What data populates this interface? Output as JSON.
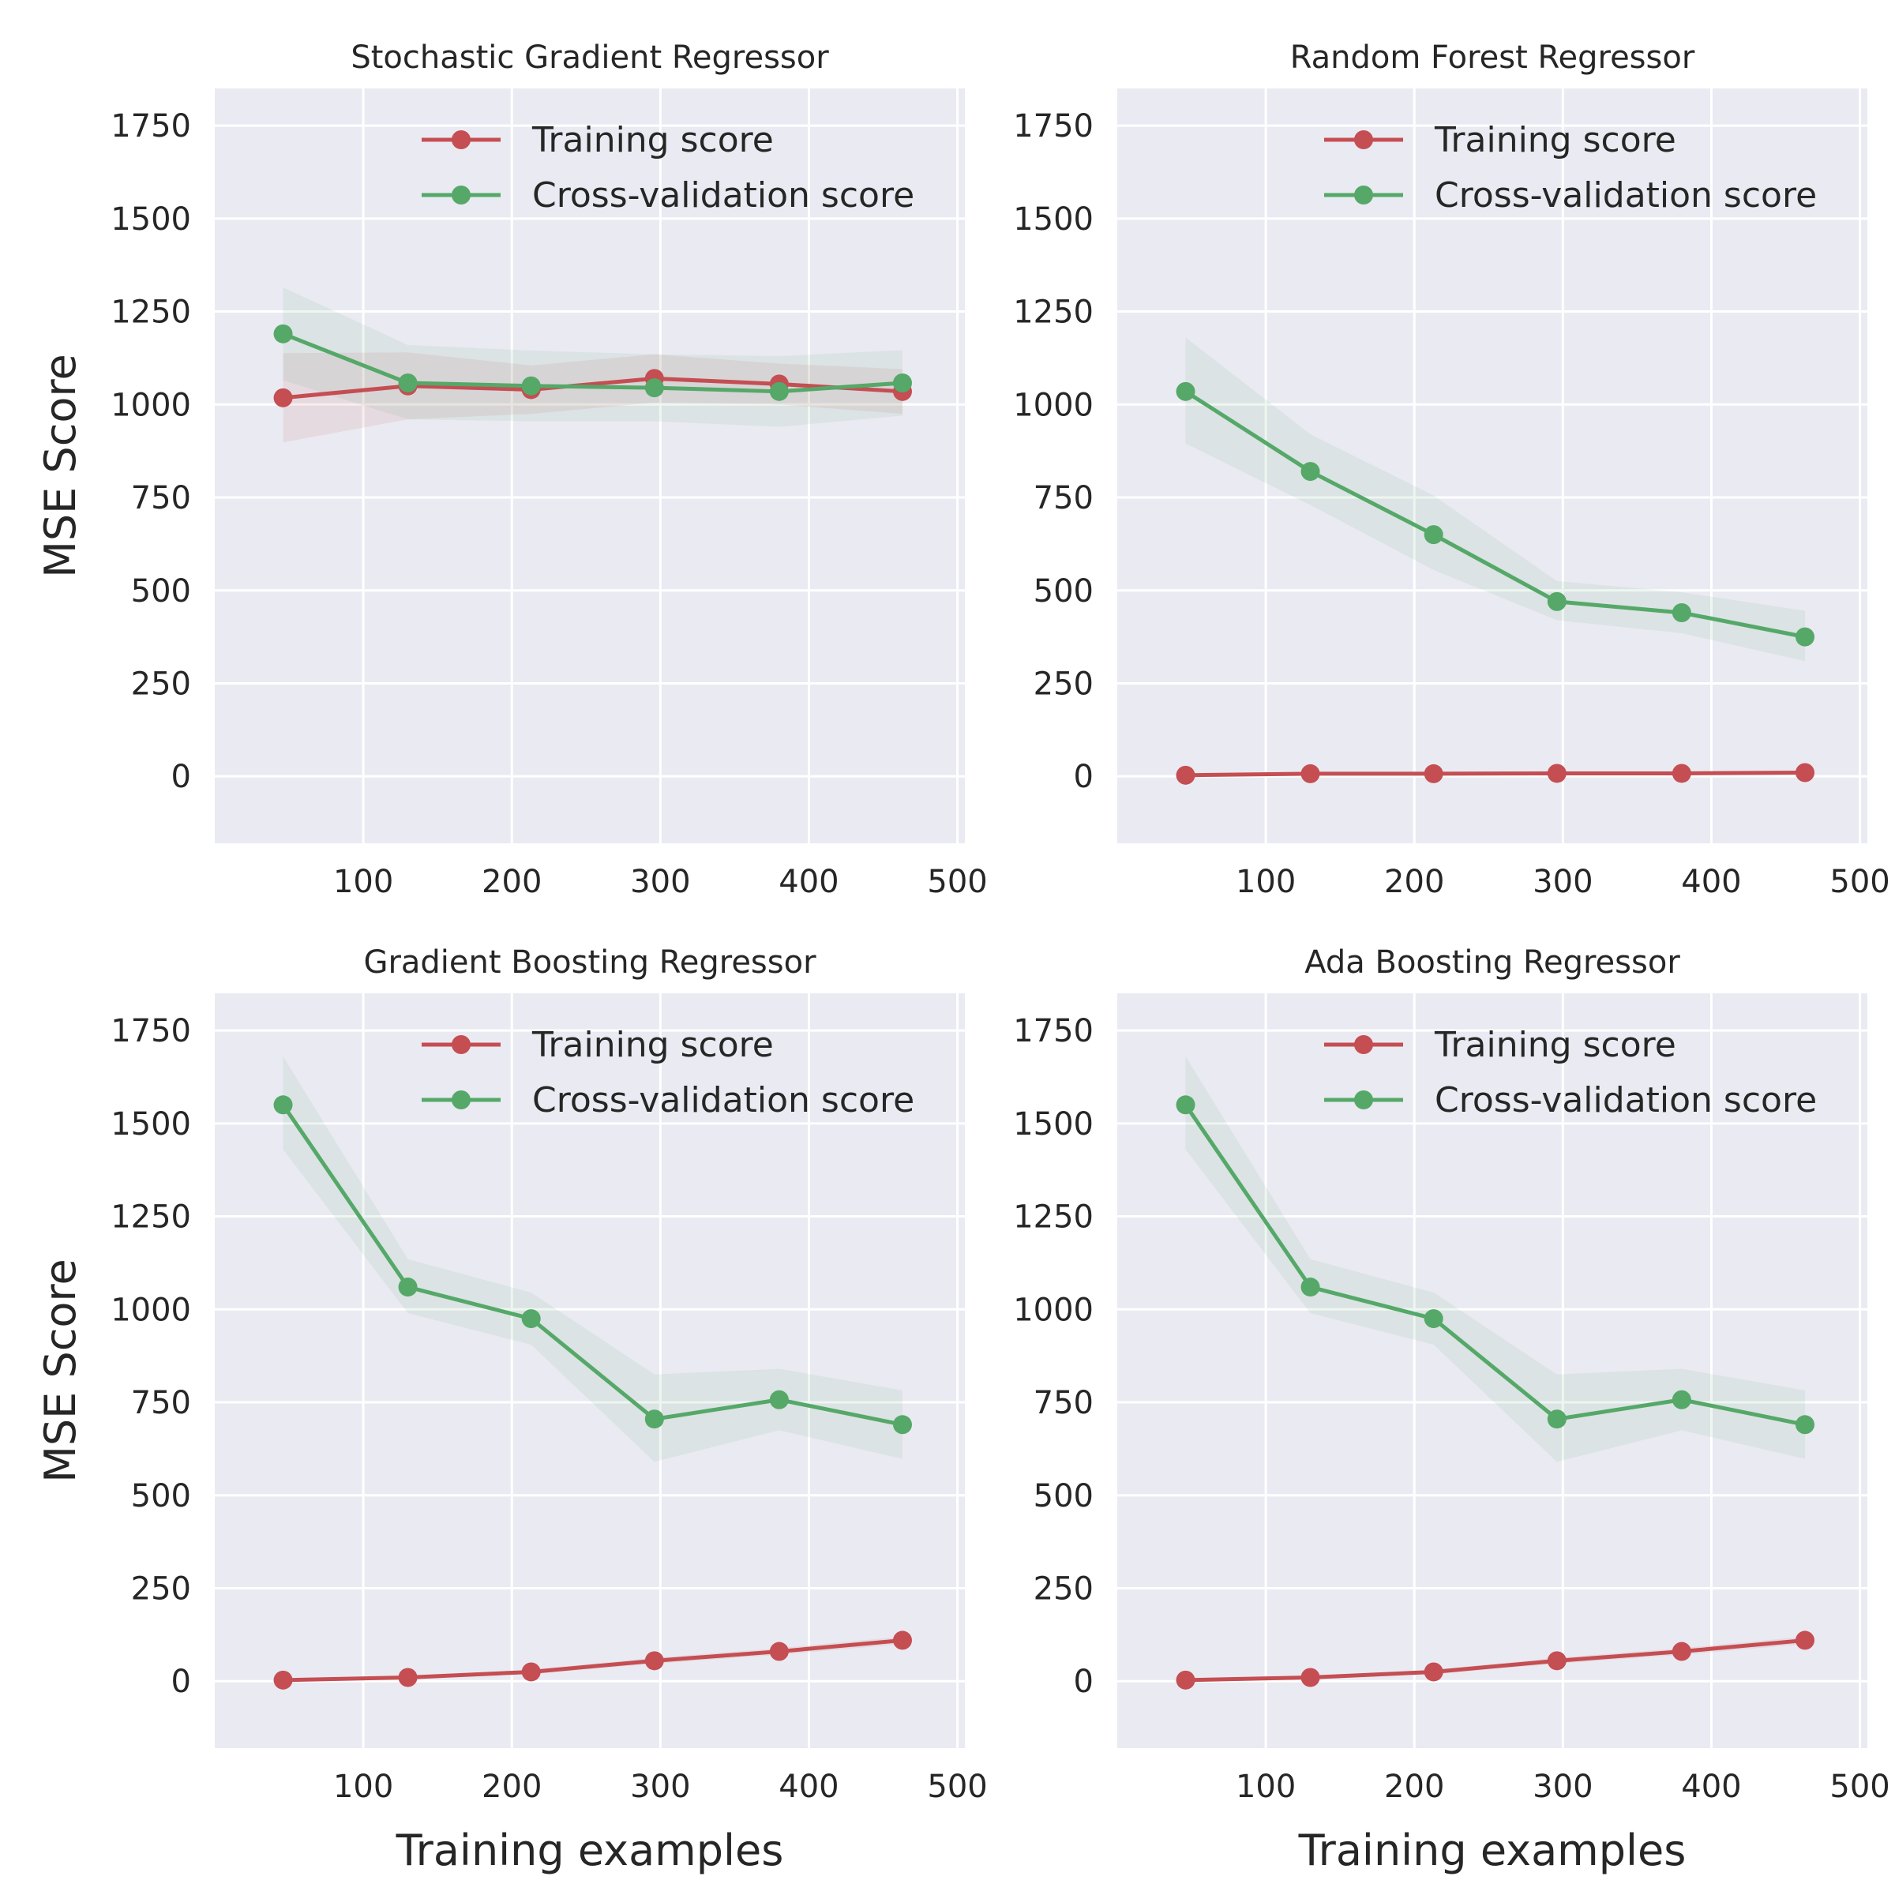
{
  "figure": {
    "shared_ylabel": "MSE Score",
    "shared_xlabel": "Training examples",
    "colors": {
      "training": "#c44e52",
      "cv": "#55a868",
      "background": "#eaeaf2",
      "grid": "#ffffff",
      "text": "#262626"
    }
  },
  "chart_data": [
    {
      "type": "line",
      "title": "Stochastic Gradient Regressor",
      "xlabel": "",
      "ylabel": "MSE Score",
      "xlim": [
        0,
        505
      ],
      "ylim": [
        -180,
        1850
      ],
      "xticks": [
        100,
        200,
        300,
        400,
        500
      ],
      "yticks": [
        0,
        250,
        500,
        750,
        1000,
        1250,
        1500,
        1750
      ],
      "grid": true,
      "legend": "top-right",
      "x": [
        46,
        130,
        213,
        296,
        380,
        463
      ],
      "series": [
        {
          "name": "Training score",
          "color": "#c44e52",
          "values": [
            1018,
            1050,
            1040,
            1070,
            1055,
            1035
          ],
          "band": [
            [
              898,
              1138
            ],
            [
              960,
              1140
            ],
            [
              975,
              1105
            ],
            [
              1005,
              1135
            ],
            [
              1000,
              1110
            ],
            [
              975,
              1095
            ]
          ]
        },
        {
          "name": "Cross-validation score",
          "color": "#55a868",
          "values": [
            1190,
            1058,
            1050,
            1045,
            1035,
            1058
          ],
          "band": [
            [
              1065,
              1315
            ],
            [
              960,
              1160
            ],
            [
              955,
              1145
            ],
            [
              955,
              1135
            ],
            [
              940,
              1130
            ],
            [
              970,
              1146
            ]
          ]
        }
      ]
    },
    {
      "type": "line",
      "title": "Random Forest Regressor",
      "xlabel": "",
      "ylabel": "",
      "xlim": [
        0,
        505
      ],
      "ylim": [
        -180,
        1850
      ],
      "xticks": [
        100,
        200,
        300,
        400,
        500
      ],
      "yticks": [
        0,
        250,
        500,
        750,
        1000,
        1250,
        1500,
        1750
      ],
      "grid": true,
      "legend": "top-right",
      "x": [
        46,
        130,
        213,
        296,
        380,
        463
      ],
      "series": [
        {
          "name": "Training score",
          "color": "#c44e52",
          "values": [
            3,
            7,
            7,
            8,
            8,
            10
          ],
          "band": [
            [
              0,
              6
            ],
            [
              4,
              10
            ],
            [
              4,
              10
            ],
            [
              5,
              11
            ],
            [
              5,
              11
            ],
            [
              7,
              13
            ]
          ]
        },
        {
          "name": "Cross-validation score",
          "color": "#55a868",
          "values": [
            1035,
            820,
            650,
            470,
            440,
            375
          ],
          "band": [
            [
              895,
              1180
            ],
            [
              730,
              920
            ],
            [
              555,
              755
            ],
            [
              420,
              525
            ],
            [
              385,
              495
            ],
            [
              310,
              445
            ]
          ]
        }
      ]
    },
    {
      "type": "line",
      "title": "Gradient Boosting Regressor",
      "xlabel": "Training examples",
      "ylabel": "MSE Score",
      "xlim": [
        0,
        505
      ],
      "ylim": [
        -180,
        1850
      ],
      "xticks": [
        100,
        200,
        300,
        400,
        500
      ],
      "yticks": [
        0,
        250,
        500,
        750,
        1000,
        1250,
        1500,
        1750
      ],
      "grid": true,
      "legend": "top-right",
      "x": [
        46,
        130,
        213,
        296,
        380,
        463
      ],
      "series": [
        {
          "name": "Training score",
          "color": "#c44e52",
          "values": [
            3,
            10,
            25,
            55,
            80,
            110
          ],
          "band": [
            [
              0,
              6
            ],
            [
              6,
              14
            ],
            [
              19,
              31
            ],
            [
              47,
              63
            ],
            [
              71,
              89
            ],
            [
              100,
              120
            ]
          ]
        },
        {
          "name": "Cross-validation score",
          "color": "#55a868",
          "values": [
            1550,
            1060,
            975,
            705,
            757,
            690
          ],
          "band": [
            [
              1430,
              1680
            ],
            [
              990,
              1135
            ],
            [
              905,
              1045
            ],
            [
              590,
              825
            ],
            [
              675,
              840
            ],
            [
              598,
              782
            ]
          ]
        }
      ]
    },
    {
      "type": "line",
      "title": "Ada Boosting Regressor",
      "xlabel": "Training examples",
      "ylabel": "",
      "xlim": [
        0,
        505
      ],
      "ylim": [
        -180,
        1850
      ],
      "xticks": [
        100,
        200,
        300,
        400,
        500
      ],
      "yticks": [
        0,
        250,
        500,
        750,
        1000,
        1250,
        1500,
        1750
      ],
      "grid": true,
      "legend": "top-right",
      "x": [
        46,
        130,
        213,
        296,
        380,
        463
      ],
      "series": [
        {
          "name": "Training score",
          "color": "#c44e52",
          "values": [
            3,
            10,
            25,
            55,
            80,
            110
          ],
          "band": [
            [
              0,
              6
            ],
            [
              6,
              14
            ],
            [
              19,
              31
            ],
            [
              47,
              63
            ],
            [
              71,
              89
            ],
            [
              100,
              120
            ]
          ]
        },
        {
          "name": "Cross-validation score",
          "color": "#55a868",
          "values": [
            1550,
            1060,
            975,
            705,
            757,
            690
          ],
          "band": [
            [
              1430,
              1680
            ],
            [
              990,
              1135
            ],
            [
              905,
              1045
            ],
            [
              590,
              825
            ],
            [
              675,
              840
            ],
            [
              598,
              782
            ]
          ]
        }
      ]
    }
  ]
}
